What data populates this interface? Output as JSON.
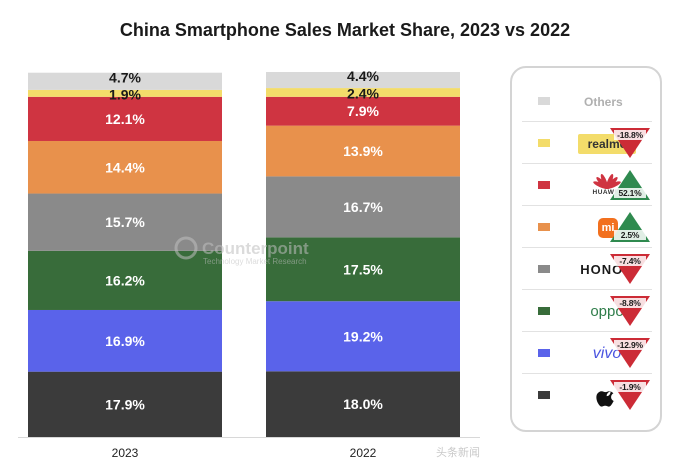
{
  "title": "China Smartphone Sales Market Share, 2023 vs 2022",
  "watermark_text": "Counterpoint",
  "watermark_sub": "Technology Market Research",
  "source_watermark": "头条新闻",
  "colors": {
    "others": "#d9d9d9",
    "realme": "#f3dc6a",
    "huawei": "#cf3441",
    "xiaomi": "#e8914c",
    "honor": "#8a8a8a",
    "oppo": "#386c3a",
    "vivo": "#5a63ea",
    "apple": "#3b3b3b",
    "up": "#2f8a4f",
    "down": "#cc2b36"
  },
  "chart_data": {
    "type": "bar",
    "stacked": true,
    "title": "China Smartphone Sales Market Share, 2023 vs 2022",
    "categories": [
      "2023",
      "2022"
    ],
    "unit": "%",
    "ylim": [
      0,
      100
    ],
    "series": [
      {
        "name": "Apple",
        "key": "apple",
        "values": [
          17.9,
          18.0
        ],
        "labels": [
          "17.9%",
          "18.0%"
        ]
      },
      {
        "name": "vivo",
        "key": "vivo",
        "values": [
          16.9,
          19.2
        ],
        "labels": [
          "16.9%",
          "19.2%"
        ]
      },
      {
        "name": "OPPO",
        "key": "oppo",
        "values": [
          16.2,
          17.5
        ],
        "labels": [
          "16.2%",
          "17.5%"
        ]
      },
      {
        "name": "HONOR",
        "key": "honor",
        "values": [
          15.7,
          16.7
        ],
        "labels": [
          "15.7%",
          "16.7%"
        ]
      },
      {
        "name": "Xiaomi",
        "key": "xiaomi",
        "values": [
          14.4,
          13.9
        ],
        "labels": [
          "14.4%",
          "13.9%"
        ]
      },
      {
        "name": "HUAWEI",
        "key": "huawei",
        "values": [
          12.1,
          7.9
        ],
        "labels": [
          "12.1%",
          "7.9%"
        ]
      },
      {
        "name": "realme",
        "key": "realme",
        "values": [
          1.9,
          2.4
        ],
        "labels": [
          "1.9%",
          "2.4%"
        ]
      },
      {
        "name": "Others",
        "key": "others",
        "values": [
          4.7,
          4.4
        ],
        "labels": [
          "4.7%",
          "4.4%"
        ]
      }
    ]
  },
  "legend": {
    "others_label": "Others",
    "items": [
      {
        "key": "realme",
        "brand": "realme",
        "change": "-18.8%",
        "direction": "down"
      },
      {
        "key": "huawei",
        "brand": "HUAWEI",
        "change": "52.1%",
        "direction": "up"
      },
      {
        "key": "xiaomi",
        "brand": "mi",
        "change": "2.5%",
        "direction": "up"
      },
      {
        "key": "honor",
        "brand": "HONOR",
        "change": "-7.4%",
        "direction": "down"
      },
      {
        "key": "oppo",
        "brand": "oppo",
        "change": "-8.8%",
        "direction": "down"
      },
      {
        "key": "vivo",
        "brand": "vivo",
        "change": "-12.9%",
        "direction": "down"
      },
      {
        "key": "apple",
        "brand": "Apple",
        "change": "-1.9%",
        "direction": "down"
      }
    ]
  }
}
